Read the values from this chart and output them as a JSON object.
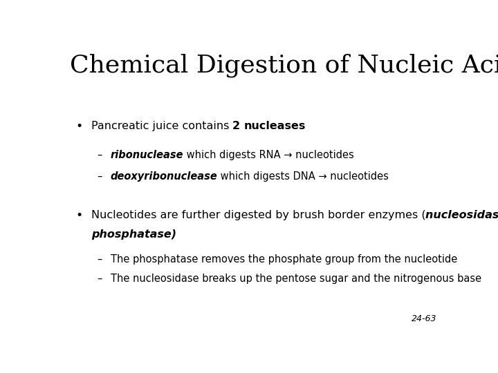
{
  "title": "Chemical Digestion of Nucleic Acids",
  "background_color": "#ffffff",
  "title_fontsize": 26,
  "slide_number": "24-63",
  "sub1a_italic": "ribonuclease",
  "sub1a_rest": " which digests RNA → nucleotides",
  "sub1b_italic": "deoxyribonuclease",
  "sub1b_rest": " which digests DNA → nucleotides",
  "sub2a": "The phosphatase removes the phosphate group from the nucleotide",
  "sub2b": "The nucleosidase breaks up the pentose sugar and the nitrogenous base",
  "text_color": "#000000",
  "font_size_bullet": 11.5,
  "font_size_sub": 10.5,
  "font_size_slide_num": 9
}
